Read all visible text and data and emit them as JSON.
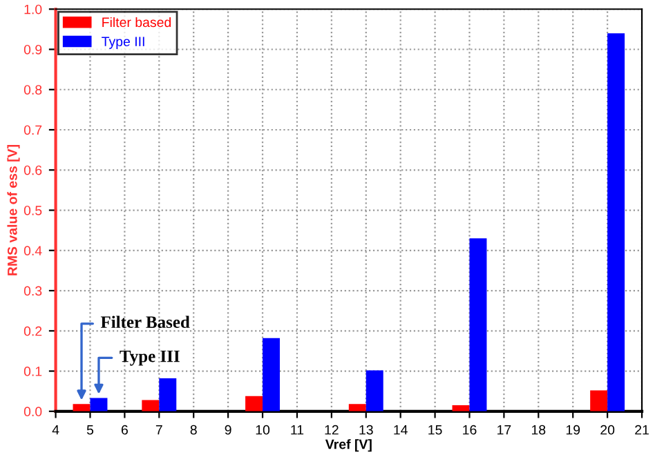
{
  "chart_data": {
    "type": "bar",
    "xlabel": "Vref [V]",
    "ylabel": "RMS value of ess [V]",
    "x": [
      5,
      7,
      10,
      13,
      16,
      20
    ],
    "series": [
      {
        "name": "Filter based",
        "color": "#ff0000",
        "values": [
          0.018,
          0.028,
          0.038,
          0.018,
          0.015,
          0.052
        ]
      },
      {
        "name": "Type III",
        "color": "#0000ff",
        "values": [
          0.033,
          0.082,
          0.182,
          0.102,
          0.43,
          0.94
        ]
      }
    ],
    "xlim": [
      4,
      21
    ],
    "xticks": [
      4,
      5,
      6,
      7,
      8,
      9,
      10,
      11,
      12,
      13,
      14,
      15,
      16,
      17,
      18,
      19,
      20,
      21
    ],
    "ylim": [
      0,
      1
    ],
    "yticks": [
      {
        "value": 0,
        "label": "0.0"
      },
      0.1,
      0.2,
      0.3,
      0.4,
      0.5,
      0.6,
      0.7,
      0.8,
      0.9,
      {
        "value": 1,
        "label": "1.0"
      }
    ],
    "grid": true,
    "legend": "top left",
    "annotations": [
      {
        "text": "Filter Based",
        "x": 4.75,
        "y": 0.018
      },
      {
        "text": "Type III",
        "x": 5.25,
        "y": 0.033
      }
    ]
  }
}
